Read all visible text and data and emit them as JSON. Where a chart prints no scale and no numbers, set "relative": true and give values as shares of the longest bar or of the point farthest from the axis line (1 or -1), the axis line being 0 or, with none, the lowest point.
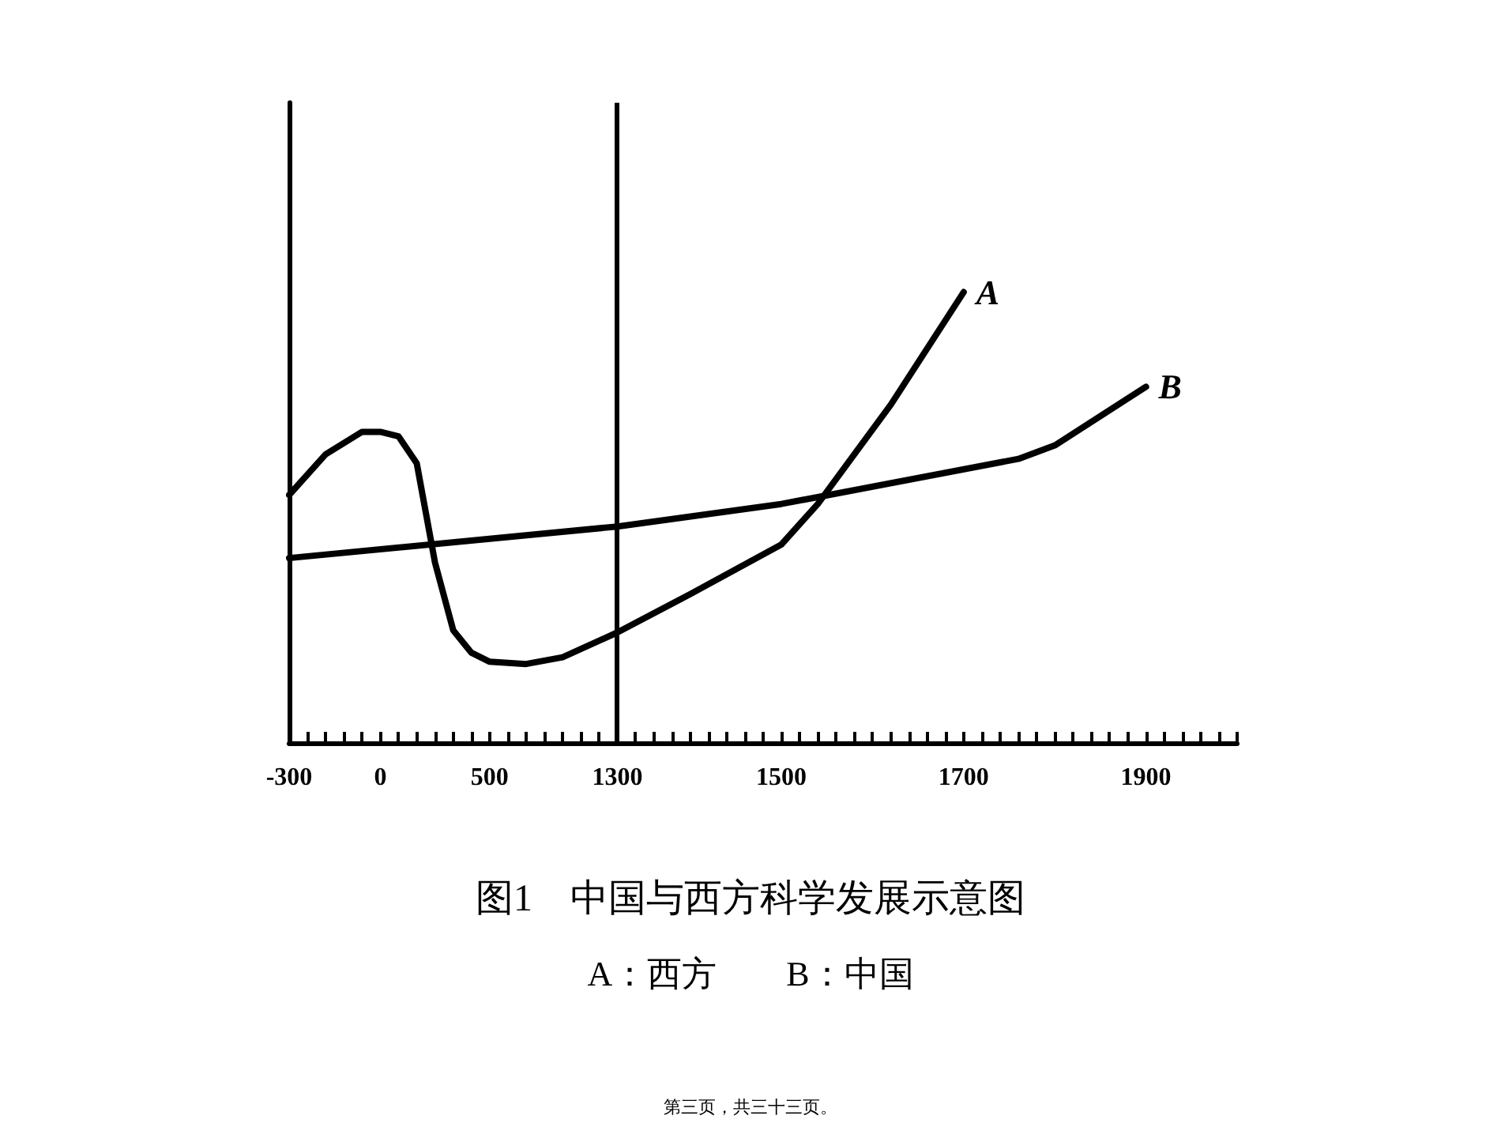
{
  "chart_data": {
    "type": "line",
    "title": "图1　中国与西方科学发展示意图",
    "subtitle": "A：西方　　B：中国",
    "annotations": [
      "第三页，共三十三页。"
    ],
    "relative": true,
    "marker": "none",
    "line_style": "solid",
    "grid": false,
    "legend": false,
    "categories": [
      "-300",
      null,
      null,
      null,
      null,
      "0",
      null,
      null,
      null,
      null,
      null,
      "500",
      null,
      null,
      null,
      null,
      null,
      null,
      "1300",
      null,
      null,
      null,
      null,
      null,
      null,
      null,
      null,
      "1500",
      null,
      null,
      null,
      null,
      null,
      null,
      null,
      null,
      null,
      "1700",
      null,
      null,
      null,
      null,
      null,
      null,
      null,
      null,
      null,
      "1900",
      null,
      null,
      null,
      null,
      null
    ],
    "series": [
      {
        "name": "A",
        "color": "#000000",
        "values": [
          0.55,
          null,
          0.64,
          null,
          0.69,
          0.69,
          0.68,
          0.62,
          0.4,
          0.25,
          0.2,
          0.18,
          null,
          0.175,
          null,
          0.19,
          null,
          null,
          0.245,
          null,
          null,
          null,
          0.33,
          null,
          null,
          null,
          null,
          0.44,
          null,
          0.53,
          null,
          null,
          null,
          0.75,
          null,
          null,
          null,
          1,
          null,
          null,
          null,
          null,
          null,
          null,
          null,
          null,
          null,
          null,
          null,
          null,
          null,
          null,
          null
        ]
      },
      {
        "name": "B",
        "color": "#000000",
        "values": [
          0.41,
          null,
          null,
          null,
          null,
          null,
          null,
          null,
          null,
          null,
          null,
          null,
          null,
          null,
          null,
          null,
          null,
          null,
          0.48,
          null,
          null,
          null,
          null,
          null,
          null,
          null,
          null,
          0.53,
          null,
          null,
          null,
          null,
          null,
          null,
          null,
          null,
          null,
          null,
          null,
          null,
          0.63,
          null,
          0.66,
          null,
          null,
          null,
          null,
          0.79,
          null,
          null,
          null,
          null,
          null
        ]
      }
    ],
    "ref_lines": [
      {
        "axis": "x",
        "value": "1300",
        "color": "#000000"
      }
    ]
  }
}
